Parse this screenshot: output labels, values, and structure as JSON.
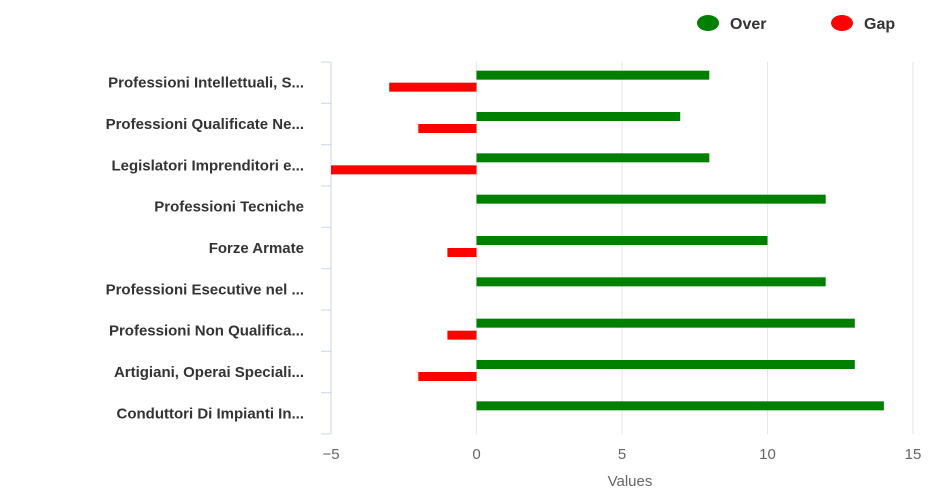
{
  "chart_data": {
    "type": "bar",
    "orientation": "horizontal",
    "categories": [
      "Professioni Intellettuali, S...",
      "Professioni Qualificate Ne...",
      "Legislatori Imprenditori e...",
      "Professioni Tecniche",
      "Forze Armate",
      "Professioni Esecutive nel ...",
      "Professioni Non Qualifica...",
      "Artigiani, Operai Speciali...",
      "Conduttori Di Impianti In..."
    ],
    "series": [
      {
        "name": "Over",
        "color": "#008000",
        "values": [
          8,
          7,
          8,
          12,
          10,
          12,
          13,
          13,
          14
        ]
      },
      {
        "name": "Gap",
        "color": "#ff0000",
        "values": [
          -3,
          -2,
          -5,
          null,
          -1,
          null,
          -1,
          -2,
          null
        ]
      }
    ],
    "xlabel": "Values",
    "ylabel": "",
    "xlim": [
      -5,
      15
    ],
    "ticks": [
      -5,
      0,
      5,
      10,
      15
    ],
    "tick_labels": [
      "−5",
      "0",
      "5",
      "10",
      "15"
    ],
    "grid": true,
    "legend_position": "top-right"
  }
}
